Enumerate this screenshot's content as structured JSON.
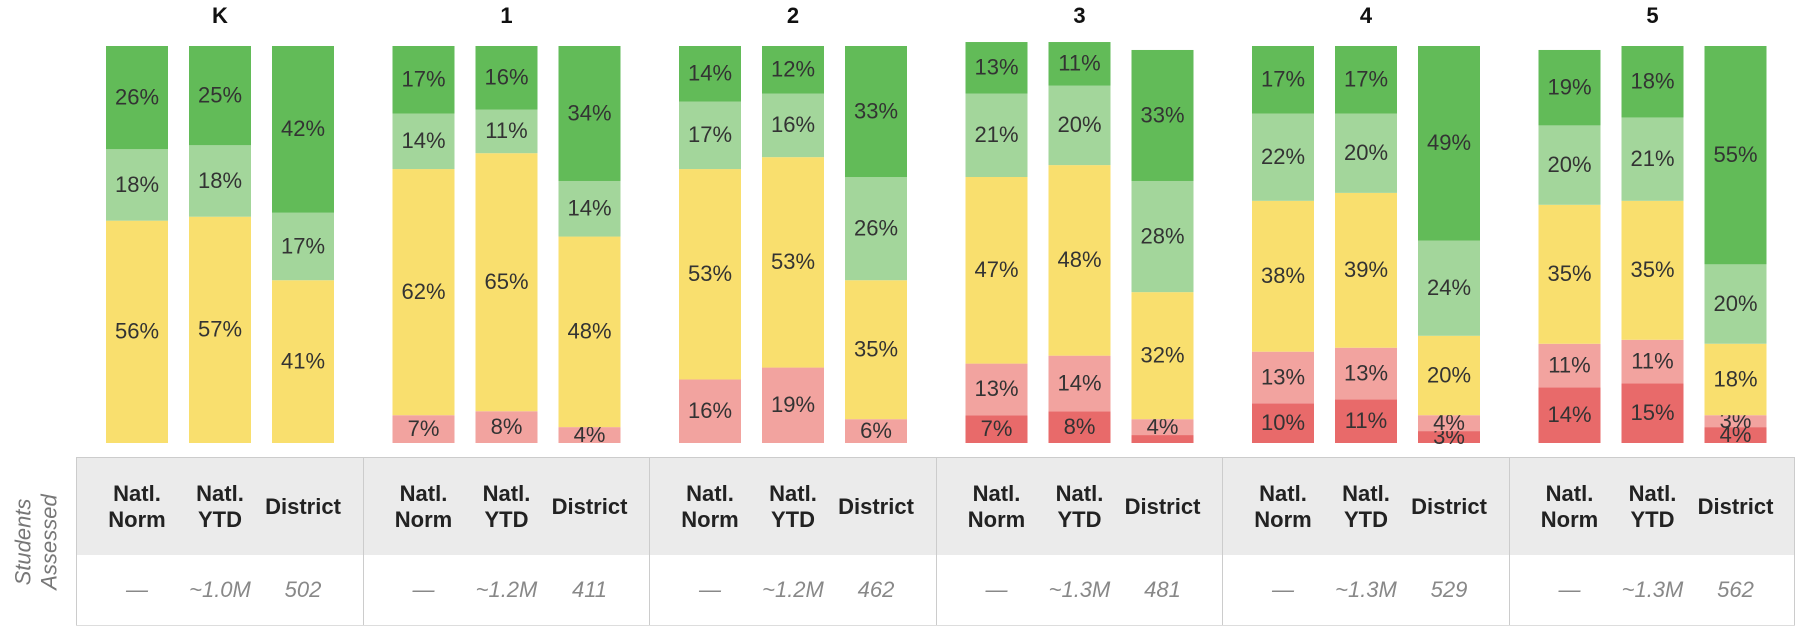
{
  "chart_data": {
    "type": "bar",
    "stacked": true,
    "ylim": [
      0,
      100
    ],
    "groups": [
      "K",
      "1",
      "2",
      "3",
      "4",
      "5"
    ],
    "categories": [
      "Natl. Norm",
      "Natl. YTD",
      "District",
      "Natl. Norm",
      "Natl. YTD",
      "District",
      "Natl. Norm",
      "Natl. YTD",
      "District",
      "Natl. Norm",
      "Natl. YTD",
      "District",
      "Natl. Norm",
      "Natl. YTD",
      "District",
      "Natl. Norm",
      "Natl. YTD",
      "District"
    ],
    "series": [
      {
        "color": "#e86a6a",
        "values": [
          null,
          null,
          null,
          null,
          null,
          null,
          null,
          null,
          null,
          7,
          8,
          2,
          10,
          11,
          3,
          14,
          15,
          4
        ],
        "value_labels": [
          null,
          null,
          null,
          null,
          null,
          null,
          null,
          null,
          null,
          "7%",
          "8%",
          null,
          "10%",
          "11%",
          "3%",
          "14%",
          "15%",
          "4%"
        ]
      },
      {
        "color": "#f2a39f",
        "values": [
          null,
          null,
          null,
          7,
          8,
          4,
          16,
          19,
          6,
          13,
          14,
          4,
          13,
          13,
          4,
          11,
          11,
          3
        ],
        "value_labels": [
          null,
          null,
          null,
          "7%",
          "8%",
          "4%",
          "16%",
          "19%",
          "6%",
          "13%",
          "14%",
          "4%",
          "13%",
          "13%",
          "4%",
          "11%",
          "11%",
          "3%"
        ]
      },
      {
        "color": "#f9df6e",
        "values": [
          56,
          57,
          41,
          62,
          65,
          48,
          53,
          53,
          35,
          47,
          48,
          32,
          38,
          39,
          20,
          35,
          35,
          18
        ],
        "value_labels": [
          "56%",
          "57%",
          "41%",
          "62%",
          "65%",
          "48%",
          "53%",
          "53%",
          "35%",
          "47%",
          "48%",
          "32%",
          "38%",
          "39%",
          "20%",
          "35%",
          "35%",
          "18%"
        ]
      },
      {
        "color": "#a3d69b",
        "values": [
          18,
          18,
          17,
          14,
          11,
          14,
          17,
          16,
          26,
          21,
          20,
          28,
          22,
          20,
          24,
          20,
          21,
          20
        ],
        "value_labels": [
          "18%",
          "18%",
          "17%",
          "14%",
          "11%",
          "14%",
          "17%",
          "16%",
          "26%",
          "21%",
          "20%",
          "28%",
          "22%",
          "20%",
          "24%",
          "20%",
          "21%",
          "20%"
        ]
      },
      {
        "color": "#62bb58",
        "values": [
          26,
          25,
          42,
          17,
          16,
          34,
          14,
          12,
          33,
          13,
          11,
          33,
          17,
          17,
          49,
          19,
          18,
          55
        ],
        "value_labels": [
          "26%",
          "25%",
          "42%",
          "17%",
          "16%",
          "34%",
          "14%",
          "12%",
          "33%",
          "13%",
          "11%",
          "33%",
          "17%",
          "17%",
          "49%",
          "19%",
          "18%",
          "55%"
        ]
      }
    ],
    "table_label": "Students Assessed",
    "students_assessed": [
      "—",
      "~1.0M",
      502,
      "—",
      "~1.2M",
      411,
      "—",
      "~1.2M",
      462,
      "—",
      "~1.3M",
      481,
      "—",
      "~1.3M",
      529,
      "—",
      "~1.3M",
      562
    ]
  }
}
